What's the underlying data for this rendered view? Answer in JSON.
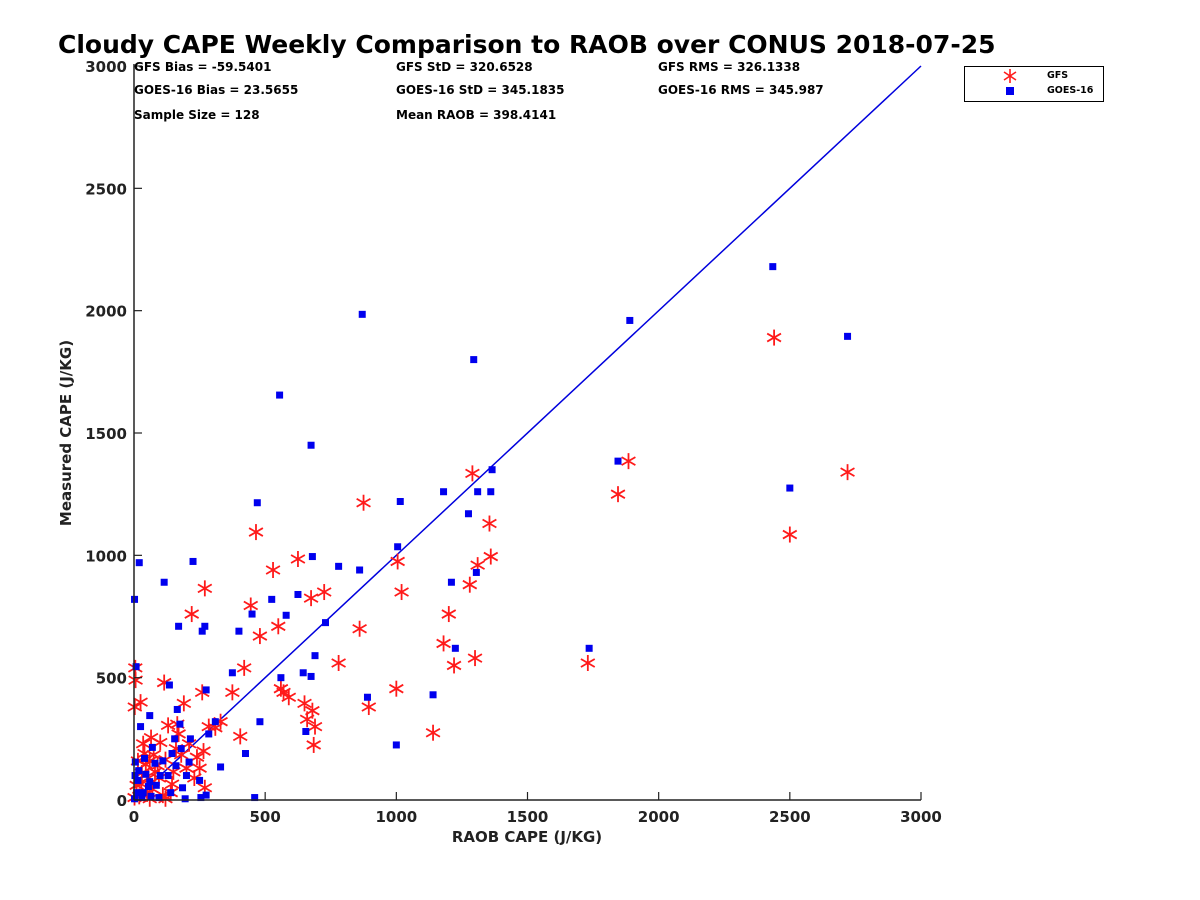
{
  "chart_data": {
    "type": "scatter",
    "title": "Cloudy CAPE Weekly Comparison to RAOB over CONUS 2018-07-25",
    "xlabel": "RAOB CAPE (J/KG)",
    "ylabel": "Measured CAPE (J/KG)",
    "xlim": [
      0,
      3000
    ],
    "ylim": [
      0,
      3000
    ],
    "xticks": [
      "0",
      "500",
      "1000",
      "1500",
      "2000",
      "2500",
      "3000"
    ],
    "yticks": [
      "0",
      "500",
      "1000",
      "1500",
      "2000",
      "2500",
      "3000"
    ],
    "grid": false,
    "legend_position": "top-right",
    "reference_line": {
      "x": [
        0,
        3000
      ],
      "y": [
        0,
        3000
      ],
      "color": "#0000dd"
    },
    "stats": [
      [
        "GFS Bias = -59.5401",
        "GFS StD = 320.6528",
        "GFS RMS = 326.1338"
      ],
      [
        "GOES-16 Bias = 23.5655",
        "GOES-16 StD = 345.1835",
        "GOES-16 RMS = 345.987"
      ],
      [
        "Sample Size = 128",
        "Mean RAOB = 398.4141",
        ""
      ]
    ],
    "series": [
      {
        "name": "GFS",
        "marker": "asterisk",
        "color": "#ff1a1a",
        "points": [
          [
            2720,
            1340
          ],
          [
            2500,
            1085
          ],
          [
            2440,
            1890
          ],
          [
            1885,
            1385
          ],
          [
            1845,
            1250
          ],
          [
            1730,
            560
          ],
          [
            1360,
            995
          ],
          [
            1355,
            1130
          ],
          [
            1310,
            960
          ],
          [
            1300,
            580
          ],
          [
            1290,
            1335
          ],
          [
            1280,
            880
          ],
          [
            1220,
            550
          ],
          [
            1200,
            760
          ],
          [
            1180,
            640
          ],
          [
            1140,
            275
          ],
          [
            1020,
            850
          ],
          [
            1005,
            975
          ],
          [
            1000,
            455
          ],
          [
            895,
            380
          ],
          [
            875,
            1215
          ],
          [
            860,
            700
          ],
          [
            780,
            560
          ],
          [
            725,
            850
          ],
          [
            690,
            300
          ],
          [
            685,
            225
          ],
          [
            680,
            365
          ],
          [
            675,
            825
          ],
          [
            660,
            330
          ],
          [
            650,
            395
          ],
          [
            625,
            985
          ],
          [
            590,
            420
          ],
          [
            570,
            440
          ],
          [
            560,
            455
          ],
          [
            550,
            710
          ],
          [
            530,
            940
          ],
          [
            480,
            670
          ],
          [
            465,
            1095
          ],
          [
            445,
            795
          ],
          [
            420,
            540
          ],
          [
            405,
            260
          ],
          [
            375,
            440
          ],
          [
            330,
            320
          ],
          [
            310,
            295
          ],
          [
            285,
            300
          ],
          [
            270,
            865
          ],
          [
            265,
            200
          ],
          [
            260,
            440
          ],
          [
            250,
            130
          ],
          [
            230,
            90
          ],
          [
            220,
            760
          ],
          [
            210,
            230
          ],
          [
            200,
            130
          ],
          [
            190,
            395
          ],
          [
            180,
            185
          ],
          [
            170,
            270
          ],
          [
            165,
            310
          ],
          [
            160,
            210
          ],
          [
            150,
            115
          ],
          [
            145,
            65
          ],
          [
            140,
            30
          ],
          [
            130,
            305
          ],
          [
            120,
            165
          ],
          [
            115,
            480
          ],
          [
            110,
            20
          ],
          [
            100,
            235
          ],
          [
            95,
            90
          ],
          [
            90,
            140
          ],
          [
            80,
            115
          ],
          [
            75,
            185
          ],
          [
            70,
            45
          ],
          [
            65,
            255
          ],
          [
            60,
            160
          ],
          [
            55,
            90
          ],
          [
            50,
            25
          ],
          [
            45,
            145
          ],
          [
            40,
            190
          ],
          [
            35,
            230
          ],
          [
            30,
            110
          ],
          [
            28,
            65
          ],
          [
            25,
            400
          ],
          [
            20,
            15
          ],
          [
            15,
            160
          ],
          [
            10,
            60
          ],
          [
            6,
            490
          ],
          [
            5,
            540
          ],
          [
            3,
            380
          ],
          [
            2,
            10
          ],
          [
            270,
            50
          ],
          [
            240,
            175
          ],
          [
            120,
            5
          ],
          [
            60,
            5
          ]
        ]
      },
      {
        "name": "GOES-16",
        "marker": "square",
        "color": "#0000ee",
        "points": [
          [
            2435,
            2180
          ],
          [
            2720,
            1895
          ],
          [
            1890,
            1960
          ],
          [
            2500,
            1275
          ],
          [
            1845,
            1385
          ],
          [
            1735,
            620
          ],
          [
            1365,
            1350
          ],
          [
            1360,
            1260
          ],
          [
            1310,
            1260
          ],
          [
            1295,
            1800
          ],
          [
            1305,
            930
          ],
          [
            1275,
            1170
          ],
          [
            1225,
            620
          ],
          [
            1210,
            890
          ],
          [
            1180,
            1260
          ],
          [
            1140,
            430
          ],
          [
            1015,
            1220
          ],
          [
            1005,
            1035
          ],
          [
            1000,
            225
          ],
          [
            890,
            420
          ],
          [
            870,
            1985
          ],
          [
            860,
            940
          ],
          [
            780,
            955
          ],
          [
            730,
            725
          ],
          [
            690,
            590
          ],
          [
            680,
            995
          ],
          [
            675,
            1450
          ],
          [
            675,
            505
          ],
          [
            655,
            280
          ],
          [
            645,
            520
          ],
          [
            625,
            840
          ],
          [
            580,
            755
          ],
          [
            560,
            500
          ],
          [
            555,
            1655
          ],
          [
            525,
            820
          ],
          [
            480,
            320
          ],
          [
            470,
            1215
          ],
          [
            460,
            10
          ],
          [
            450,
            760
          ],
          [
            425,
            190
          ],
          [
            400,
            690
          ],
          [
            375,
            520
          ],
          [
            330,
            135
          ],
          [
            310,
            320
          ],
          [
            285,
            270
          ],
          [
            275,
            450
          ],
          [
            270,
            710
          ],
          [
            260,
            690
          ],
          [
            255,
            10
          ],
          [
            250,
            80
          ],
          [
            225,
            975
          ],
          [
            215,
            250
          ],
          [
            200,
            100
          ],
          [
            195,
            5
          ],
          [
            185,
            50
          ],
          [
            180,
            210
          ],
          [
            175,
            310
          ],
          [
            170,
            710
          ],
          [
            165,
            370
          ],
          [
            155,
            250
          ],
          [
            145,
            190
          ],
          [
            135,
            470
          ],
          [
            130,
            100
          ],
          [
            115,
            890
          ],
          [
            110,
            160
          ],
          [
            100,
            100
          ],
          [
            95,
            10
          ],
          [
            85,
            60
          ],
          [
            80,
            150
          ],
          [
            70,
            215
          ],
          [
            65,
            15
          ],
          [
            60,
            345
          ],
          [
            55,
            55
          ],
          [
            45,
            105
          ],
          [
            40,
            170
          ],
          [
            35,
            30
          ],
          [
            30,
            10
          ],
          [
            25,
            300
          ],
          [
            20,
            970
          ],
          [
            18,
            120
          ],
          [
            15,
            80
          ],
          [
            10,
            30
          ],
          [
            8,
            545
          ],
          [
            5,
            155
          ],
          [
            4,
            100
          ],
          [
            2,
            820
          ],
          [
            2,
            5
          ],
          [
            275,
            20
          ],
          [
            210,
            155
          ],
          [
            160,
            140
          ],
          [
            60,
            75
          ],
          [
            140,
            30
          ]
        ]
      }
    ]
  }
}
